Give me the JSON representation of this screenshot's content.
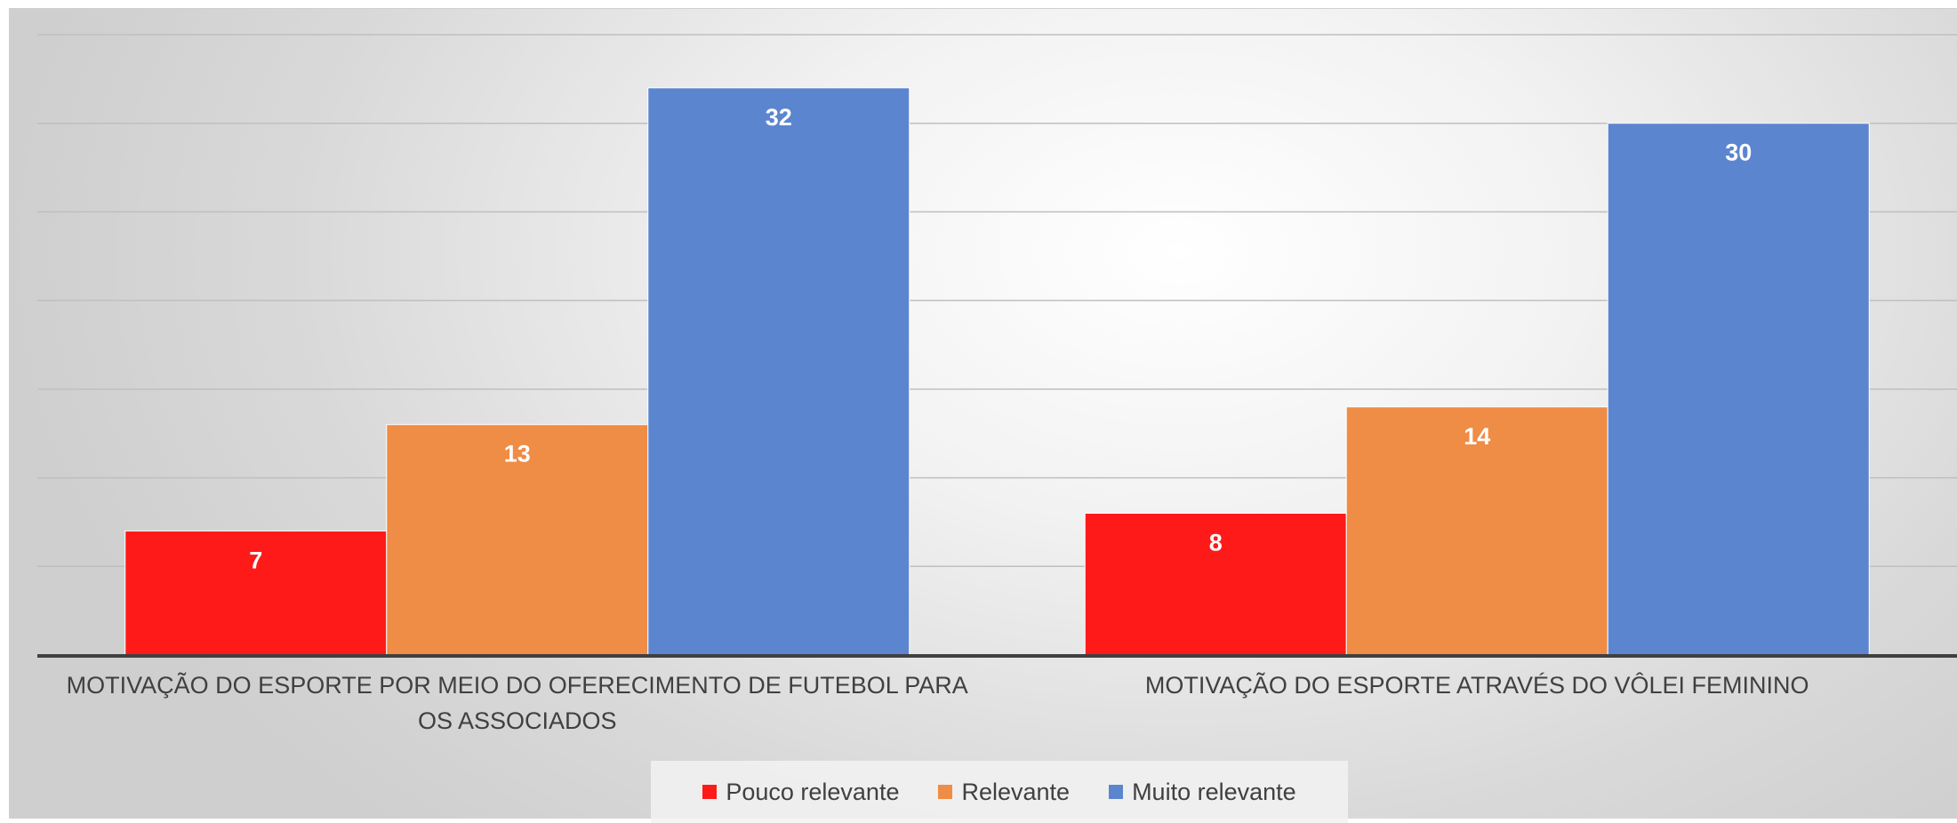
{
  "chart_data": {
    "type": "bar",
    "categories": [
      "MOTIVAÇÃO DO ESPORTE POR MEIO DO OFERECIMENTO DE FUTEBOL PARA OS ASSOCIADOS",
      "MOTIVAÇÃO DO ESPORTE ATRAVÉS DO VÔLEI FEMININO"
    ],
    "series": [
      {
        "name": "Pouco relevante",
        "values": [
          7,
          8
        ],
        "color": "#ff1a1a"
      },
      {
        "name": "Relevante",
        "values": [
          13,
          14
        ],
        "color": "#ef8c45"
      },
      {
        "name": "Muito relevante",
        "values": [
          32,
          30
        ],
        "color": "#5b85cf"
      }
    ],
    "ylim": [
      0,
      35
    ],
    "grid": true,
    "y_tick_labels_visible": false,
    "data_labels": true,
    "legend_position": "bottom"
  }
}
